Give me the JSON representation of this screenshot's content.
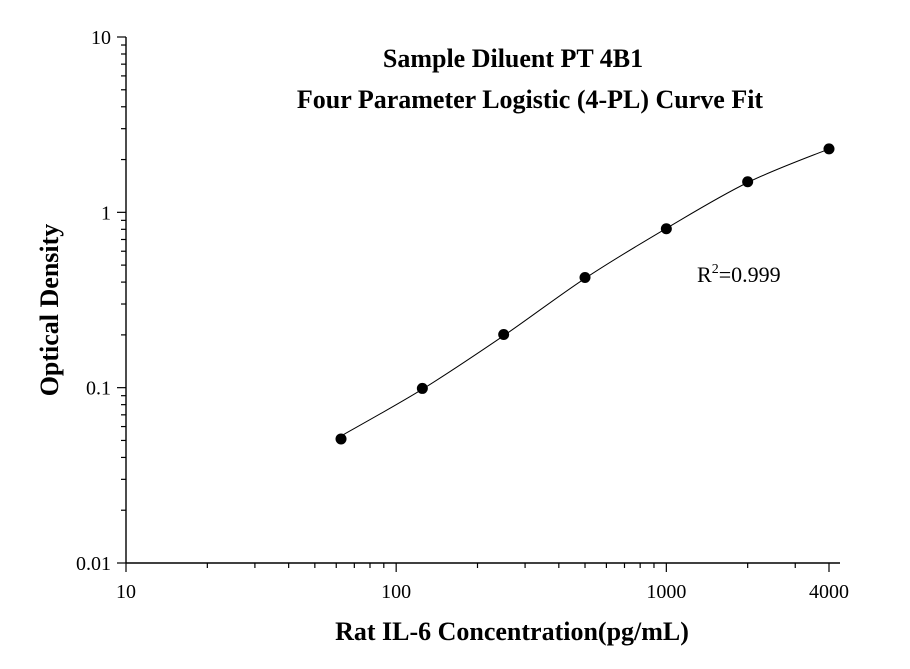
{
  "chart_data": {
    "type": "scatter",
    "title": "Sample Diluent PT 4B1",
    "subtitle": "Four Parameter Logistic (4-PL) Curve Fit",
    "xlabel": "Rat IL-6 Concentration(pg/mL)",
    "ylabel": "Optical Density",
    "x_scale": "log",
    "y_scale": "log",
    "xlim": [
      10,
      4000
    ],
    "ylim": [
      0.01,
      10
    ],
    "x_ticks": [
      {
        "value": 10,
        "label": "10"
      },
      {
        "value": 100,
        "label": "100"
      },
      {
        "value": 1000,
        "label": "1000"
      },
      {
        "value": 4000,
        "label": "4000"
      }
    ],
    "y_ticks": [
      {
        "value": 10,
        "label": "10"
      },
      {
        "value": 1,
        "label": "1"
      },
      {
        "value": 0.1,
        "label": "0.1"
      },
      {
        "value": 0.01,
        "label": "0.01"
      }
    ],
    "grid": false,
    "series": [
      {
        "x": [
          62.5,
          125,
          250,
          500,
          1000,
          2000,
          4000
        ],
        "y": [
          0.051,
          0.099,
          0.201,
          0.425,
          0.806,
          1.495,
          2.3
        ]
      }
    ],
    "fit_curve": {
      "model": "4-PL",
      "x": [
        62.5,
        125,
        250,
        500,
        1000,
        2000,
        4000
      ],
      "y": [
        0.053,
        0.098,
        0.198,
        0.42,
        0.81,
        1.48,
        2.3
      ]
    },
    "annotation": {
      "base": "R",
      "superscript": "2",
      "value_text": "=0.999"
    }
  }
}
